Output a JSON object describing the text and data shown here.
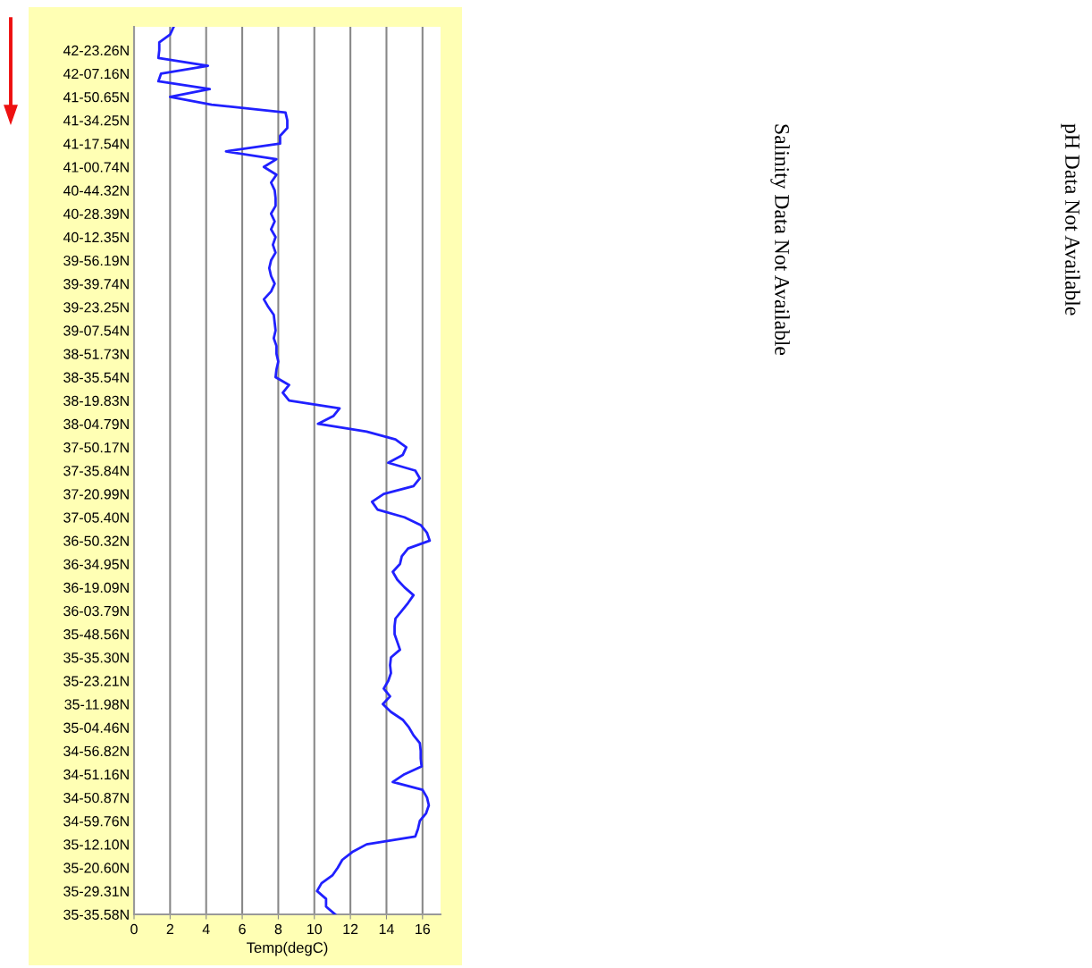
{
  "chart_data": {
    "type": "line",
    "orientation": "horizontal",
    "xlabel": "Temp(degC)",
    "xlim": [
      0,
      17
    ],
    "xticks": [
      0,
      2,
      4,
      6,
      8,
      10,
      12,
      14,
      16
    ],
    "grid": "x",
    "categories": [
      null,
      null,
      null,
      "42-23.26N",
      null,
      null,
      "42-07.16N",
      null,
      null,
      "41-50.65N",
      null,
      null,
      "41-34.25N",
      null,
      null,
      "41-17.54N",
      null,
      null,
      "41-00.74N",
      null,
      null,
      "40-44.32N",
      null,
      null,
      "40-28.39N",
      null,
      null,
      "40-12.35N",
      null,
      null,
      "39-56.19N",
      null,
      null,
      "39-39.74N",
      null,
      null,
      "39-23.25N",
      null,
      null,
      "39-07.54N",
      null,
      null,
      "38-51.73N",
      null,
      null,
      "38-35.54N",
      null,
      null,
      "38-19.83N",
      null,
      null,
      "38-04.79N",
      null,
      null,
      "37-50.17N",
      null,
      null,
      "37-35.84N",
      null,
      null,
      "37-20.99N",
      null,
      null,
      "37-05.40N",
      null,
      null,
      "36-50.32N",
      null,
      null,
      "36-34.95N",
      null,
      null,
      "36-19.09N",
      null,
      null,
      "36-03.79N",
      null,
      null,
      "35-48.56N",
      null,
      null,
      "35-35.30N",
      null,
      null,
      "35-23.21N",
      null,
      null,
      "35-11.98N",
      null,
      null,
      "35-04.46N",
      null,
      null,
      "34-56.82N",
      null,
      null,
      "34-51.16N",
      null,
      null,
      "34-50.87N",
      null,
      null,
      "34-59.76N",
      null,
      null,
      "35-12.10N",
      null,
      null,
      "35-20.60N",
      null,
      null,
      "35-29.31N",
      null,
      null,
      "35-35.58N"
    ],
    "series": [
      {
        "color": "#2020ff",
        "values": [
          2.2,
          2.0,
          1.4,
          1.4,
          1.35,
          4.1,
          1.5,
          1.35,
          4.2,
          2.0,
          4.3,
          8.4,
          8.5,
          8.5,
          8.1,
          8.1,
          5.1,
          7.9,
          7.2,
          7.9,
          7.6,
          7.8,
          7.85,
          7.85,
          7.6,
          7.8,
          7.6,
          7.85,
          7.7,
          7.85,
          7.6,
          7.5,
          7.6,
          7.8,
          7.6,
          7.2,
          7.45,
          7.75,
          7.8,
          7.85,
          7.75,
          7.9,
          7.9,
          8.0,
          7.9,
          7.85,
          8.6,
          8.25,
          8.6,
          11.4,
          11.05,
          10.2,
          12.9,
          14.5,
          15.1,
          14.9,
          14.1,
          15.6,
          15.85,
          15.5,
          13.85,
          13.2,
          13.5,
          15.0,
          15.9,
          16.25,
          16.4,
          15.2,
          14.85,
          14.75,
          14.35,
          14.6,
          15.0,
          15.5,
          15.2,
          14.85,
          14.5,
          14.45,
          14.45,
          14.6,
          14.75,
          14.25,
          14.2,
          14.25,
          14.1,
          13.85,
          14.2,
          13.8,
          14.25,
          14.9,
          15.25,
          15.5,
          15.85,
          15.9,
          15.9,
          15.95,
          15.0,
          14.35,
          16.0,
          16.25,
          16.35,
          16.2,
          15.85,
          15.75,
          15.6,
          12.9,
          12.1,
          11.55,
          11.3,
          11.0,
          10.4,
          10.15,
          10.65,
          10.65,
          11.15
        ]
      }
    ],
    "annotations": [
      "Salinity Data Not Available",
      "pH Data Not Available"
    ]
  }
}
